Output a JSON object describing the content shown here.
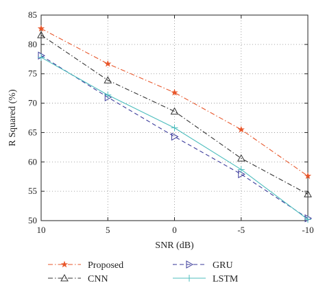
{
  "chart_data": {
    "type": "line",
    "xlabel": "SNR (dB)",
    "ylabel": "R Squared (%)",
    "x": [
      10,
      5,
      0,
      -5,
      -10
    ],
    "x_order": "descending",
    "ylim": [
      50,
      85
    ],
    "yticks": [
      50,
      55,
      60,
      65,
      70,
      75,
      80,
      85
    ],
    "xticks": [
      10,
      5,
      0,
      -5,
      -10
    ],
    "grid": true,
    "legend_position": "bottom",
    "series": [
      {
        "name": "Proposed",
        "values": [
          82.7,
          76.7,
          71.8,
          65.5,
          57.6
        ],
        "color": "#e8562a",
        "marker": "star",
        "dash": "dash-dot"
      },
      {
        "name": "CNN",
        "values": [
          81.6,
          73.9,
          68.6,
          60.6,
          54.5
        ],
        "color": "#333333",
        "marker": "triangle-up",
        "dash": "dash-dot"
      },
      {
        "name": "GRU",
        "values": [
          78.1,
          71.0,
          64.3,
          57.9,
          50.4
        ],
        "color": "#3a3a9a",
        "marker": "triangle-right",
        "dash": "dashed"
      },
      {
        "name": "LSTM",
        "values": [
          77.8,
          71.4,
          65.8,
          58.7,
          50.2
        ],
        "color": "#4cbdbd",
        "marker": "plus",
        "dash": "solid"
      }
    ]
  }
}
